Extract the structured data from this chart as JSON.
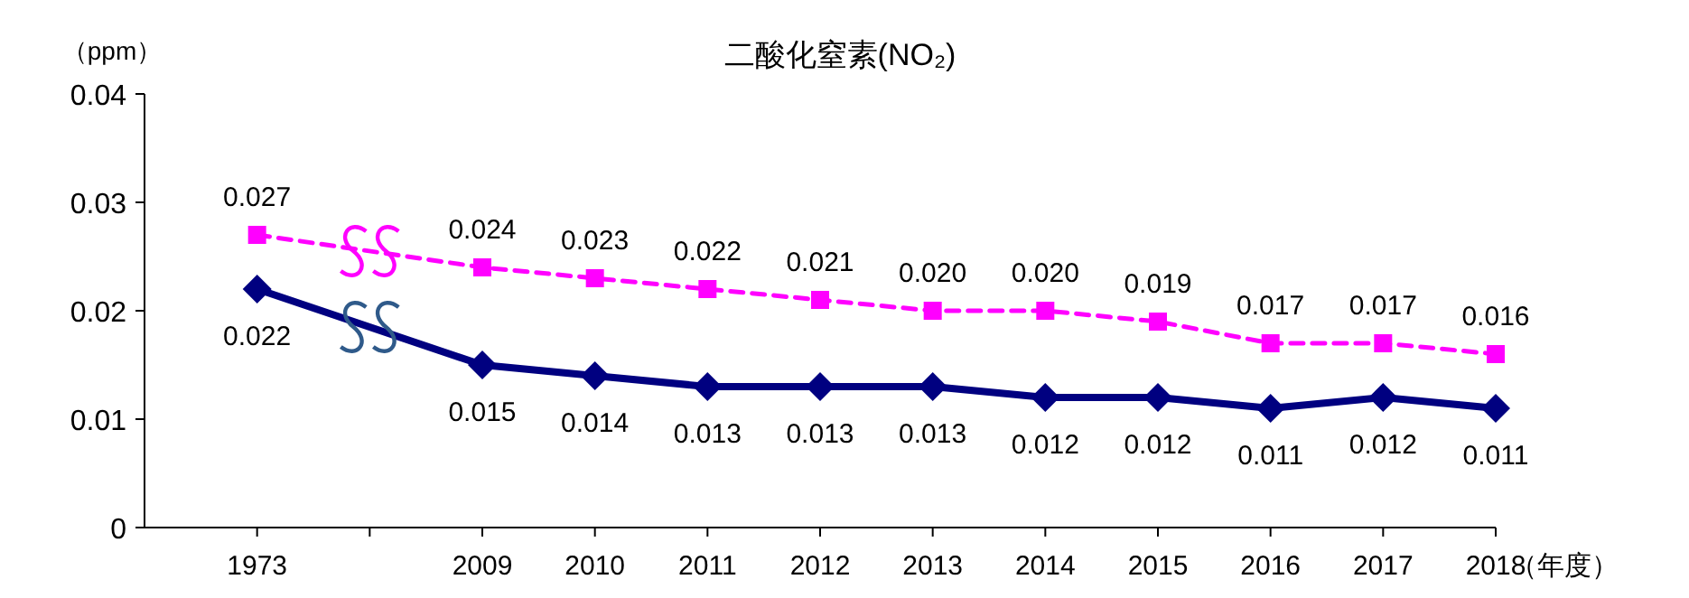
{
  "chart_data": {
    "type": "line",
    "title": "二酸化窒素(NO₂)",
    "ylabel": "（ppm）",
    "xlabel": "（年度）",
    "categories": [
      "1973",
      null,
      "2009",
      "2010",
      "2011",
      "2012",
      "2013",
      "2014",
      "2015",
      "2016",
      "2017",
      "2018"
    ],
    "ylim": [
      0,
      0.04
    ],
    "yticks": [
      0,
      0.01,
      0.02,
      0.03,
      0.04
    ],
    "grid": false,
    "series": [
      {
        "color": "#ff00ff",
        "marker": "square",
        "line_style": "dashed",
        "values": [
          0.027,
          null,
          0.024,
          0.023,
          0.022,
          0.021,
          0.02,
          0.02,
          0.019,
          0.017,
          0.017,
          0.016
        ],
        "value_labels": [
          "0.027",
          null,
          "0.024",
          "0.023",
          "0.022",
          "0.021",
          "0.020",
          "0.020",
          "0.019",
          "0.017",
          "0.017",
          "0.016"
        ]
      },
      {
        "color": "#000080",
        "marker": "diamond",
        "line_style": "solid",
        "values": [
          0.022,
          null,
          0.015,
          0.014,
          0.013,
          0.013,
          0.013,
          0.012,
          0.012,
          0.011,
          0.012,
          0.011
        ],
        "value_labels": [
          "0.022",
          null,
          "0.015",
          "0.014",
          "0.013",
          "0.013",
          "0.013",
          "0.012",
          "0.012",
          "0.011",
          "0.012",
          "0.011"
        ]
      }
    ]
  }
}
